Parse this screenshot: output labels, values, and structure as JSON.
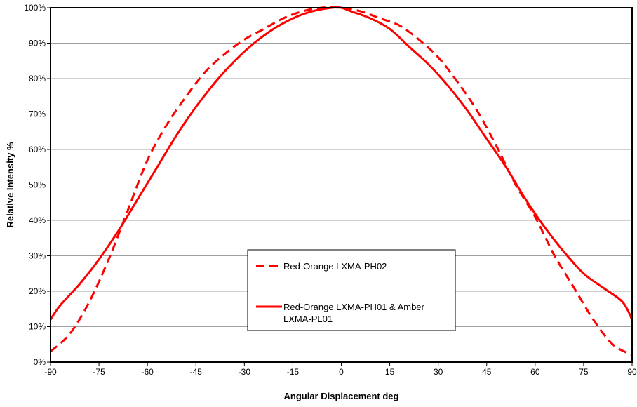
{
  "chart_data": {
    "type": "line",
    "title": "",
    "xlabel": "Angular Displacement deg",
    "ylabel": "Relative Intensity %",
    "xlim": [
      -90,
      90
    ],
    "ylim": [
      0,
      100
    ],
    "x_ticks": [
      -90,
      -75,
      -60,
      -45,
      -30,
      -15,
      0,
      15,
      30,
      45,
      60,
      75,
      90
    ],
    "y_ticks": [
      0,
      10,
      20,
      30,
      40,
      50,
      60,
      70,
      80,
      90,
      100
    ],
    "x_tick_labels": [
      "-90",
      "-75",
      "-60",
      "-45",
      "-30",
      "-15",
      "0",
      "15",
      "30",
      "45",
      "60",
      "75",
      "90"
    ],
    "y_tick_labels": [
      "0%",
      "10%",
      "20%",
      "30%",
      "40%",
      "50%",
      "60%",
      "70%",
      "80%",
      "90%",
      "100%"
    ],
    "grid": "horizontal",
    "legend_position": "lower-center",
    "series": [
      {
        "name": "Red-Orange LXMA-PH02",
        "style": "dashed",
        "color": "#ff0000",
        "x": [
          -90,
          -84,
          -78,
          -72,
          -66,
          -60,
          -54,
          -48,
          -42,
          -36,
          -30,
          -24,
          -18,
          -12,
          -6,
          0,
          6,
          12,
          18,
          24,
          30,
          36,
          42,
          48,
          54,
          60,
          66,
          72,
          78,
          84,
          90
        ],
        "y": [
          3,
          8,
          17,
          29,
          43,
          57,
          67,
          75,
          82,
          87,
          91,
          94,
          97,
          99,
          100,
          100,
          99,
          97,
          95,
          91,
          86,
          79,
          71,
          61,
          50,
          41,
          30,
          21,
          12,
          5,
          2
        ]
      },
      {
        "name": "Red-Orange LXMA-PH01 & Amber LXMA-PL01",
        "style": "solid",
        "color": "#ff0000",
        "x": [
          -90,
          -87,
          -81,
          -75,
          -69,
          -63,
          -57,
          -51,
          -45,
          -39,
          -33,
          -27,
          -21,
          -15,
          -9,
          -3,
          0,
          3,
          9,
          15,
          21,
          27,
          33,
          39,
          45,
          51,
          57,
          63,
          69,
          75,
          81,
          87,
          90
        ],
        "y": [
          12,
          16,
          22,
          29,
          37,
          46,
          55,
          64,
          72,
          79,
          85,
          90,
          94,
          97,
          99,
          100,
          100,
          99,
          97,
          94,
          89,
          84,
          78,
          71,
          63,
          55,
          46,
          38,
          31,
          25,
          21,
          17,
          12
        ]
      }
    ]
  }
}
